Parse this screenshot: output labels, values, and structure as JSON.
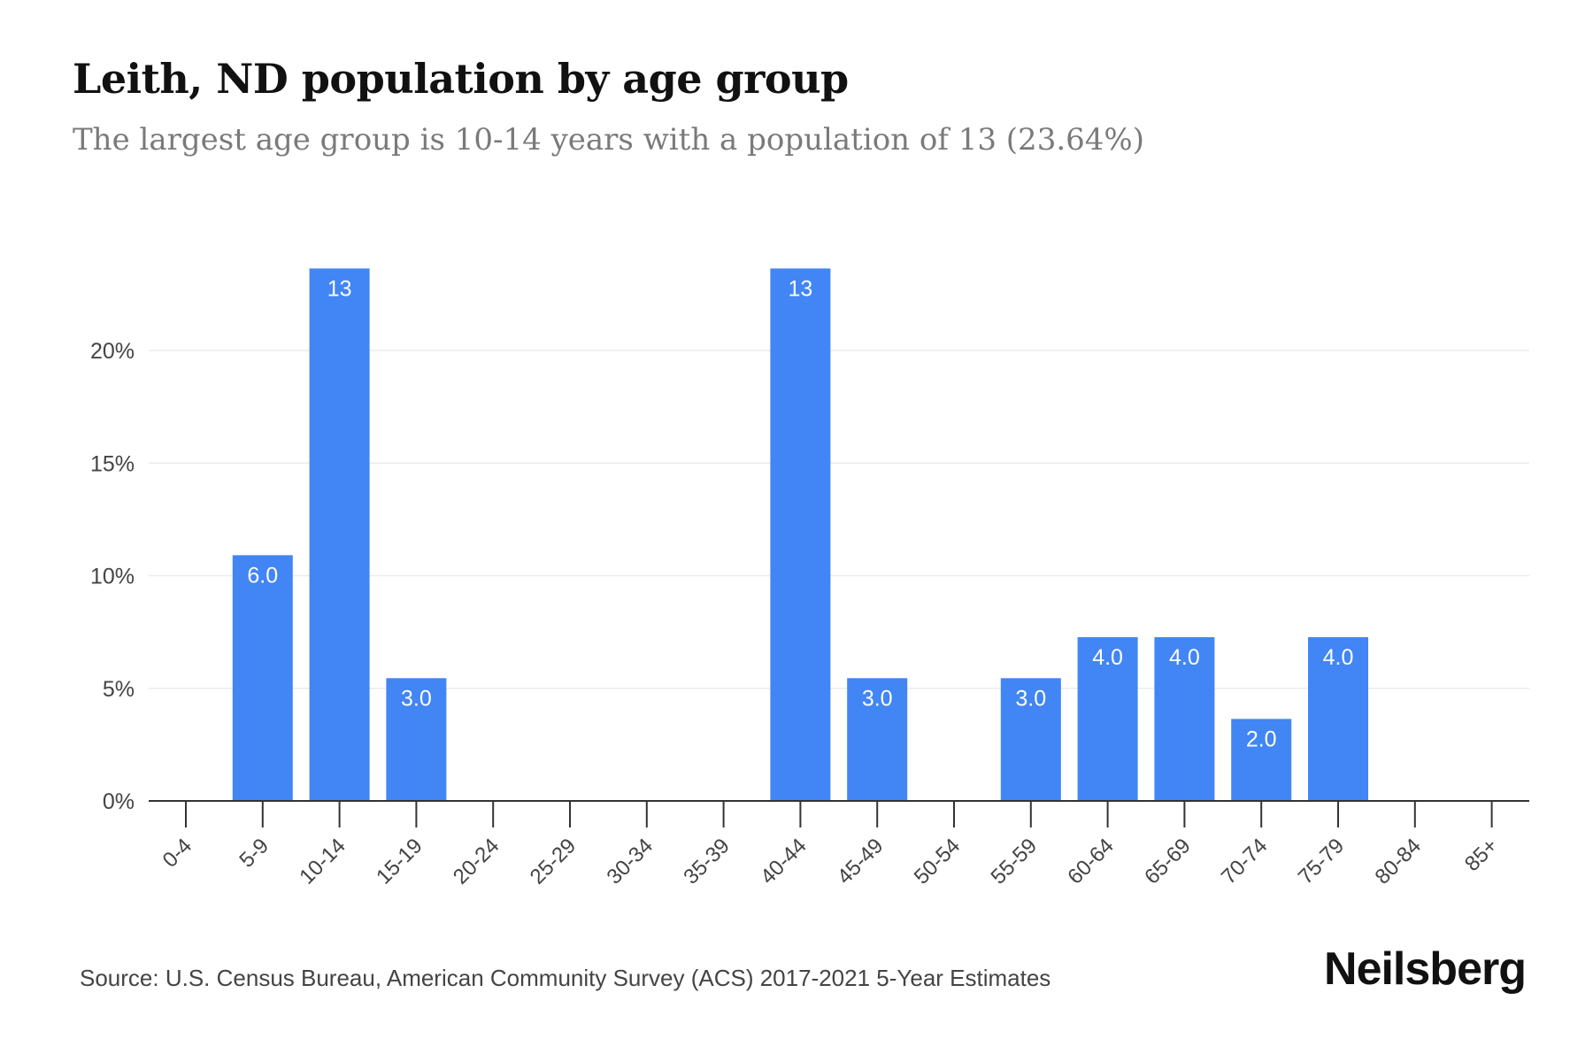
{
  "title": "Leith, ND population by age group",
  "subtitle": "The largest age group is 10-14 years with a population of 13 (23.64%)",
  "source": "Source: U.S. Census Bureau, American Community Survey (ACS) 2017-2021 5-Year Estimates",
  "brand": "Neilsberg",
  "colors": {
    "bar": "#4285f4",
    "bar_label": "#ffffff",
    "grid": "#ebebeb",
    "axis": "#333333",
    "tick_text": "#444444"
  },
  "chart_data": {
    "type": "bar",
    "title": "Leith, ND population by age group",
    "subtitle": "The largest age group is 10-14 years with a population of 13 (23.64%)",
    "xlabel": "",
    "ylabel": "",
    "categories": [
      "0-4",
      "5-9",
      "10-14",
      "15-19",
      "20-24",
      "25-29",
      "30-34",
      "35-39",
      "40-44",
      "45-49",
      "50-54",
      "55-59",
      "60-64",
      "65-69",
      "70-74",
      "75-79",
      "80-84",
      "85+"
    ],
    "values": [
      0,
      10.91,
      23.64,
      5.45,
      0,
      0,
      0,
      0,
      23.64,
      5.45,
      0,
      5.45,
      7.27,
      7.27,
      3.64,
      7.27,
      0,
      0
    ],
    "labels": [
      "",
      "6.0",
      "13",
      "3.0",
      "",
      "",
      "",
      "",
      "13",
      "3.0",
      "",
      "3.0",
      "4.0",
      "4.0",
      "2.0",
      "4.0",
      "",
      ""
    ],
    "y_ticks": [
      0,
      5,
      10,
      15,
      20
    ],
    "y_tick_labels": [
      "0%",
      "5%",
      "10%",
      "15%",
      "20%"
    ],
    "ylim": [
      0,
      25
    ],
    "grid": true,
    "legend": "none"
  }
}
